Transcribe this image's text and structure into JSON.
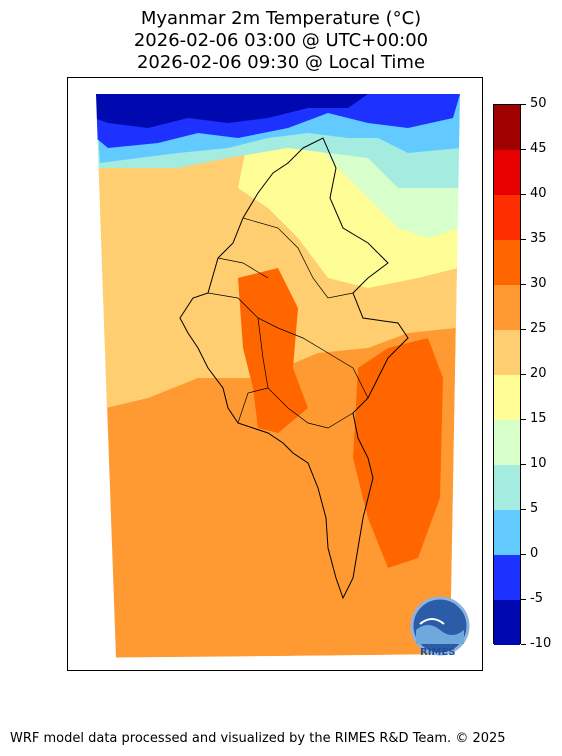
{
  "header": {
    "title_line1": "Myanmar 2m Temperature (°C)",
    "title_line2": "2026-02-06 03:00 @ UTC+00:00",
    "title_line3": "2026-02-06 09:30 @ Local Time"
  },
  "colorbar": {
    "levels": [
      -10,
      -5,
      0,
      5,
      10,
      15,
      20,
      25,
      30,
      35,
      40,
      45,
      50
    ],
    "tick_labels": [
      "-10",
      "-5",
      "0",
      "5",
      "10",
      "15",
      "20",
      "25",
      "30",
      "35",
      "40",
      "45",
      "50"
    ],
    "colors": [
      "#0008b0",
      "#1e32ff",
      "#62caff",
      "#a5ece0",
      "#d6ffca",
      "#fffd96",
      "#ffce70",
      "#ff9a32",
      "#ff6600",
      "#ff2e00",
      "#e60000",
      "#a00000"
    ]
  },
  "map": {
    "region": "Myanmar",
    "variable": "2m Temperature",
    "units": "°C",
    "colors": {
      "cold": "#0008b0",
      "freezing": "#1e32ff",
      "cool": "#62caff",
      "mild": "#a5ece0",
      "pale": "#d6ffca",
      "warm_yellow": "#fffd96",
      "light_orange": "#ffce70",
      "orange": "#ff9a32",
      "dark_orange": "#ff6600",
      "border": "#000000"
    }
  },
  "logo": {
    "text": "RIMES",
    "icon": "rimes-logo-icon"
  },
  "footer": {
    "credit": "WRF model data processed and visualized by the RIMES R&D Team. © 2025"
  }
}
